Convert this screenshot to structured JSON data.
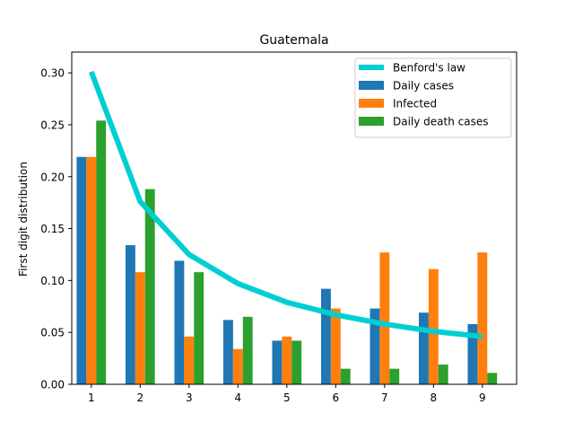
{
  "chart_data": {
    "type": "bar",
    "title": "Guatemala",
    "xlabel": "",
    "ylabel": "First digit distribution",
    "categories": [
      "1",
      "2",
      "3",
      "4",
      "5",
      "6",
      "7",
      "8",
      "9"
    ],
    "ylim": [
      0,
      0.32
    ],
    "yticks": [
      "0.00",
      "0.05",
      "0.10",
      "0.15",
      "0.20",
      "0.25",
      "0.30"
    ],
    "grid": false,
    "legend_position": "top-right",
    "series": [
      {
        "name": "Daily cases",
        "kind": "bar",
        "color": "#1f77b4",
        "values": [
          0.219,
          0.134,
          0.119,
          0.062,
          0.042,
          0.092,
          0.073,
          0.069,
          0.058
        ]
      },
      {
        "name": "Infected",
        "kind": "bar",
        "color": "#ff7f0e",
        "values": [
          0.219,
          0.108,
          0.046,
          0.034,
          0.046,
          0.073,
          0.127,
          0.111,
          0.127
        ]
      },
      {
        "name": "Daily death cases",
        "kind": "bar",
        "color": "#2ca02c",
        "values": [
          0.254,
          0.188,
          0.108,
          0.065,
          0.042,
          0.015,
          0.015,
          0.019,
          0.011
        ]
      }
    ],
    "line": {
      "name": "Benford's law",
      "kind": "line",
      "color": "#00cfd1",
      "values": [
        0.301,
        0.176,
        0.125,
        0.097,
        0.079,
        0.067,
        0.058,
        0.051,
        0.046
      ]
    }
  }
}
